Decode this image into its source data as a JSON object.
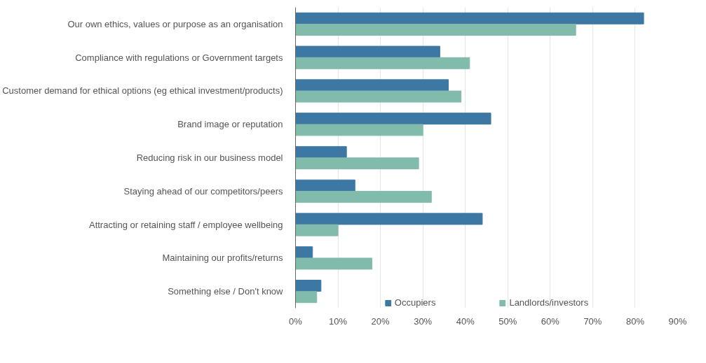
{
  "chart_data": {
    "type": "bar",
    "orientation": "horizontal",
    "categories": [
      "Our own ethics, values or purpose as an organisation",
      "Compliance with regulations or Government targets",
      "Customer demand for ethical options (eg ethical investment/products)",
      "Brand image or reputation",
      "Reducing risk in our business model",
      "Staying ahead of our competitors/peers",
      "Attracting or retaining staff / employee wellbeing",
      "Maintaining our profits/returns",
      "Something else / Don't know"
    ],
    "series": [
      {
        "name": "Occupiers",
        "color": "#3d78a5",
        "values": [
          82,
          34,
          36,
          46,
          12,
          14,
          44,
          4,
          6
        ]
      },
      {
        "name": "Landlords/investors",
        "color": "#81bbab",
        "values": [
          66,
          41,
          39,
          30,
          29,
          32,
          10,
          18,
          5
        ]
      }
    ],
    "xlim": [
      0,
      90
    ],
    "xticks": [
      {
        "value": 0,
        "label": "0%"
      },
      {
        "value": 10,
        "label": "10%"
      },
      {
        "value": 20,
        "label": "20%"
      },
      {
        "value": 30,
        "label": "30%"
      },
      {
        "value": 40,
        "label": "40%"
      },
      {
        "value": 50,
        "label": "50%"
      },
      {
        "value": 60,
        "label": "60%"
      },
      {
        "value": 70,
        "label": "70%"
      },
      {
        "value": 80,
        "label": "80%"
      },
      {
        "value": 90,
        "label": "90%"
      }
    ],
    "grid": "x",
    "legend": "bottom"
  }
}
